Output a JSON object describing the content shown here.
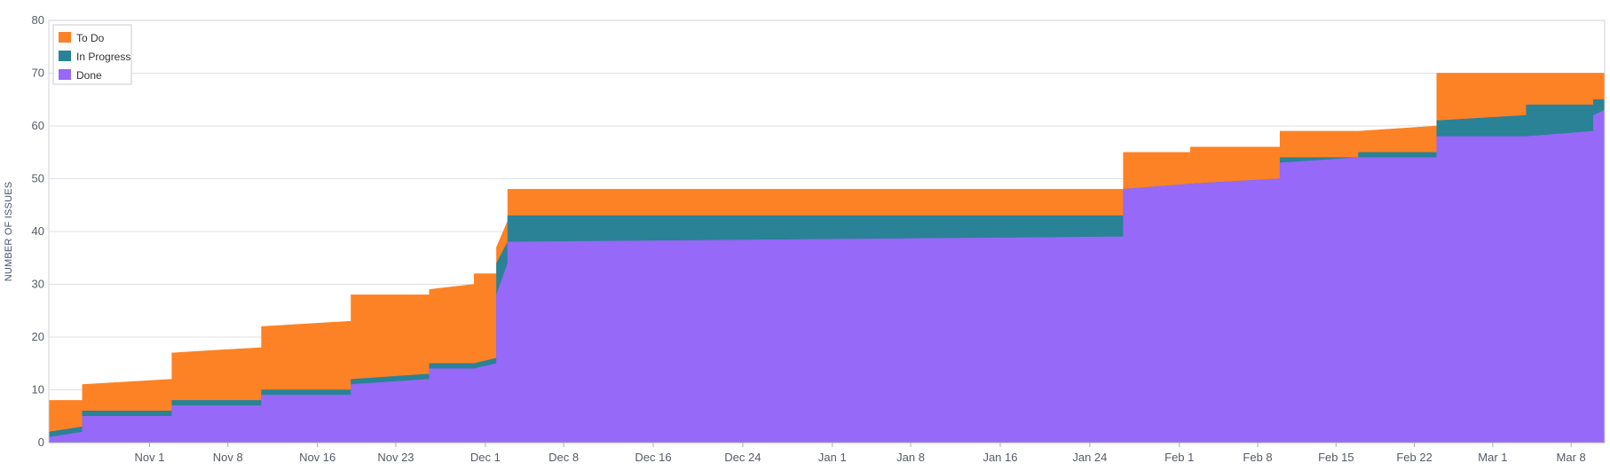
{
  "chart_data": {
    "type": "area",
    "stacked": true,
    "title": "",
    "xlabel": "",
    "ylabel": "NUMBER OF ISSUES",
    "ylim": [
      0,
      80
    ],
    "yticks": [
      "0",
      "10",
      "20",
      "30",
      "40",
      "50",
      "60",
      "70",
      "80"
    ],
    "x_axis": {
      "type": "date",
      "range": [
        "2020-10-23",
        "2021-03-11"
      ],
      "ticks": [
        {
          "date": "2020-11-01",
          "label": "Nov 1"
        },
        {
          "date": "2020-11-08",
          "label": "Nov 8"
        },
        {
          "date": "2020-11-16",
          "label": "Nov 16"
        },
        {
          "date": "2020-11-23",
          "label": "Nov 23"
        },
        {
          "date": "2020-12-01",
          "label": "Dec 1"
        },
        {
          "date": "2020-12-08",
          "label": "Dec 8"
        },
        {
          "date": "2020-12-16",
          "label": "Dec 16"
        },
        {
          "date": "2020-12-24",
          "label": "Dec 24"
        },
        {
          "date": "2021-01-01",
          "label": "Jan 1"
        },
        {
          "date": "2021-01-08",
          "label": "Jan 8"
        },
        {
          "date": "2021-01-16",
          "label": "Jan 16"
        },
        {
          "date": "2021-01-24",
          "label": "Jan 24"
        },
        {
          "date": "2021-02-01",
          "label": "Feb 1"
        },
        {
          "date": "2021-02-08",
          "label": "Feb 8"
        },
        {
          "date": "2021-02-15",
          "label": "Feb 15"
        },
        {
          "date": "2021-02-22",
          "label": "Feb 22"
        },
        {
          "date": "2021-03-01",
          "label": "Mar 1"
        },
        {
          "date": "2021-03-08",
          "label": "Mar 8"
        }
      ]
    },
    "grid": true,
    "legend_position": "top-left",
    "series": [
      {
        "name": "To Do",
        "color": "#fc8225"
      },
      {
        "name": "In Progress",
        "color": "#2a8296"
      },
      {
        "name": "Done",
        "color": "#9669f8"
      }
    ],
    "points": [
      {
        "x": "2020-10-23",
        "done": 1,
        "in_progress": 1,
        "to_do": 6
      },
      {
        "x": "2020-10-26",
        "done": 2,
        "in_progress": 1,
        "to_do": 5
      },
      {
        "x": "2020-10-26",
        "done": 5,
        "in_progress": 1,
        "to_do": 5
      },
      {
        "x": "2020-11-03",
        "done": 5,
        "in_progress": 1,
        "to_do": 6
      },
      {
        "x": "2020-11-03",
        "done": 7,
        "in_progress": 1,
        "to_do": 9
      },
      {
        "x": "2020-11-11",
        "done": 7,
        "in_progress": 1,
        "to_do": 10
      },
      {
        "x": "2020-11-11",
        "done": 9,
        "in_progress": 1,
        "to_do": 12
      },
      {
        "x": "2020-11-19",
        "done": 9,
        "in_progress": 1,
        "to_do": 13
      },
      {
        "x": "2020-11-19",
        "done": 11,
        "in_progress": 1,
        "to_do": 16
      },
      {
        "x": "2020-11-26",
        "done": 12,
        "in_progress": 1,
        "to_do": 15
      },
      {
        "x": "2020-11-26",
        "done": 14,
        "in_progress": 1,
        "to_do": 14
      },
      {
        "x": "2020-11-30",
        "done": 14,
        "in_progress": 1,
        "to_do": 15
      },
      {
        "x": "2020-11-30",
        "done": 14,
        "in_progress": 1,
        "to_do": 17
      },
      {
        "x": "2020-12-02",
        "done": 15,
        "in_progress": 1,
        "to_do": 16
      },
      {
        "x": "2020-12-02",
        "done": 28,
        "in_progress": 6,
        "to_do": 3
      },
      {
        "x": "2020-12-03",
        "done": 34,
        "in_progress": 4,
        "to_do": 4
      },
      {
        "x": "2020-12-03",
        "done": 38,
        "in_progress": 5,
        "to_do": 5
      },
      {
        "x": "2021-01-27",
        "done": 39,
        "in_progress": 4,
        "to_do": 5
      },
      {
        "x": "2021-01-27",
        "done": 48,
        "in_progress": 0,
        "to_do": 7
      },
      {
        "x": "2021-02-02",
        "done": 49,
        "in_progress": 0,
        "to_do": 6
      },
      {
        "x": "2021-02-02",
        "done": 49,
        "in_progress": 0,
        "to_do": 7
      },
      {
        "x": "2021-02-10",
        "done": 50,
        "in_progress": 0,
        "to_do": 6
      },
      {
        "x": "2021-02-10",
        "done": 53,
        "in_progress": 1,
        "to_do": 5
      },
      {
        "x": "2021-02-17",
        "done": 54,
        "in_progress": 0,
        "to_do": 5
      },
      {
        "x": "2021-02-17",
        "done": 54,
        "in_progress": 1,
        "to_do": 4
      },
      {
        "x": "2021-02-24",
        "done": 54,
        "in_progress": 1,
        "to_do": 5
      },
      {
        "x": "2021-02-24",
        "done": 58,
        "in_progress": 3,
        "to_do": 9
      },
      {
        "x": "2021-03-04",
        "done": 58,
        "in_progress": 4,
        "to_do": 8
      },
      {
        "x": "2021-03-04",
        "done": 58,
        "in_progress": 6,
        "to_do": 6
      },
      {
        "x": "2021-03-10",
        "done": 59,
        "in_progress": 5,
        "to_do": 6
      },
      {
        "x": "2021-03-10",
        "done": 62,
        "in_progress": 3,
        "to_do": 5
      },
      {
        "x": "2021-03-11",
        "done": 63,
        "in_progress": 2,
        "to_do": 5
      }
    ]
  }
}
